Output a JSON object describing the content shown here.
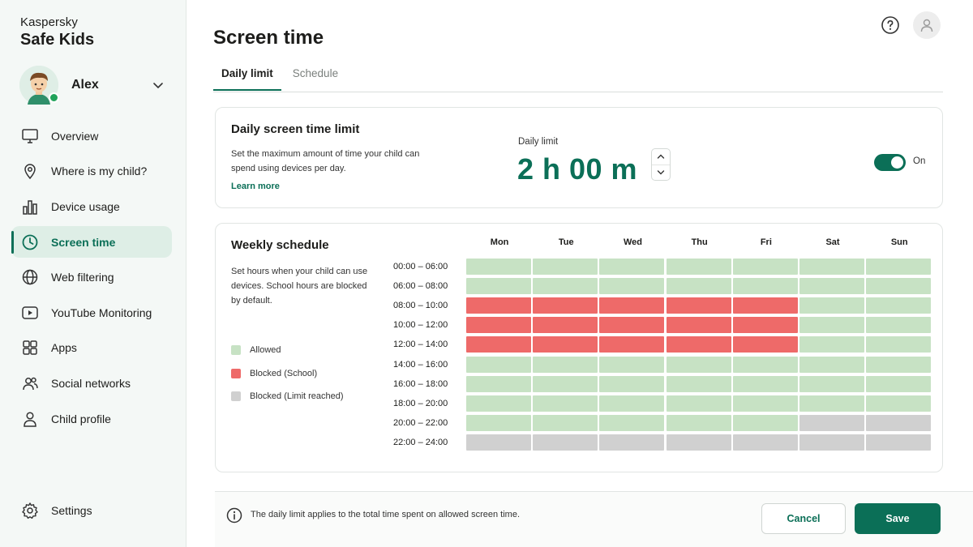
{
  "brand": {
    "line1": "Kaspersky",
    "line2": "Safe Kids"
  },
  "profile": {
    "name": "Alex",
    "avatar_icon": "boy-avatar-icon",
    "status_color": "#21a35a"
  },
  "sidebar": {
    "items": [
      {
        "label": "Overview",
        "icon": "monitor-icon"
      },
      {
        "label": "Where is my child?",
        "icon": "location-pin-icon"
      },
      {
        "label": "Device usage",
        "icon": "bar-chart-icon"
      },
      {
        "label": "Screen time",
        "icon": "clock-icon",
        "active": true
      },
      {
        "label": "Web filtering",
        "icon": "globe-icon"
      },
      {
        "label": "YouTube Monitoring",
        "icon": "play-icon"
      },
      {
        "label": "Apps",
        "icon": "apps-grid-icon"
      },
      {
        "label": "Social networks",
        "icon": "people-icon"
      },
      {
        "label": "Child profile",
        "icon": "person-icon"
      }
    ],
    "settings_label": "Settings"
  },
  "header": {
    "title": "Screen time"
  },
  "tabs": [
    {
      "label": "Daily limit",
      "active": true
    },
    {
      "label": "Schedule",
      "active": false
    }
  ],
  "daily_limit": {
    "title": "Daily screen time limit",
    "description": "Set the maximum amount of time your child can spend using devices per day.",
    "learn_more": "Learn more",
    "limit_label": "Daily limit",
    "limit_value": "2 h 00 m",
    "toggle_state": "On",
    "toggle_on": true
  },
  "weekly": {
    "title": "Weekly schedule",
    "description": "Set hours when your child can use devices. School hours are blocked by default.",
    "legend": [
      {
        "label": "Allowed",
        "color": "#c7e2c4"
      },
      {
        "label": "Blocked (School)",
        "color": "#ee6a69"
      },
      {
        "label": "Blocked (Limit reached)",
        "color": "#d0d0d0"
      }
    ],
    "days": [
      "Mon",
      "Tue",
      "Wed",
      "Thu",
      "Fri",
      "Sat",
      "Sun"
    ],
    "slots": [
      {
        "time": "00:00 – 06:00",
        "cells": [
          "a",
          "a",
          "a",
          "a",
          "a",
          "a",
          "a"
        ]
      },
      {
        "time": "06:00 – 08:00",
        "cells": [
          "a",
          "a",
          "a",
          "a",
          "a",
          "a",
          "a"
        ]
      },
      {
        "time": "08:00 – 10:00",
        "cells": [
          "s",
          "s",
          "s",
          "s",
          "s",
          "a",
          "a"
        ]
      },
      {
        "time": "10:00 – 12:00",
        "cells": [
          "s",
          "s",
          "s",
          "s",
          "s",
          "a",
          "a"
        ]
      },
      {
        "time": "12:00 – 14:00",
        "cells": [
          "s",
          "s",
          "s",
          "s",
          "s",
          "a",
          "a"
        ]
      },
      {
        "time": "14:00 – 16:00",
        "cells": [
          "a",
          "a",
          "a",
          "a",
          "a",
          "a",
          "a"
        ]
      },
      {
        "time": "16:00 – 18:00",
        "cells": [
          "a",
          "a",
          "a",
          "a",
          "a",
          "a",
          "a"
        ]
      },
      {
        "time": "18:00 – 20:00",
        "cells": [
          "a",
          "a",
          "a",
          "a",
          "a",
          "a",
          "a"
        ]
      },
      {
        "time": "20:00 – 22:00",
        "cells": [
          "a",
          "a",
          "a",
          "a",
          "a",
          "l",
          "l"
        ]
      },
      {
        "time": "22:00 – 24:00",
        "cells": [
          "l",
          "l",
          "l",
          "l",
          "l",
          "l",
          "l"
        ]
      }
    ]
  },
  "footer": {
    "info_text": "The daily limit applies to the total time spent on allowed screen time.",
    "cancel_label": "Cancel",
    "save_label": "Save"
  },
  "colors": {
    "accent": "#0b6f57",
    "allowed": "#c7e2c4",
    "school": "#ee6a69",
    "limit": "#d0d0d0"
  }
}
